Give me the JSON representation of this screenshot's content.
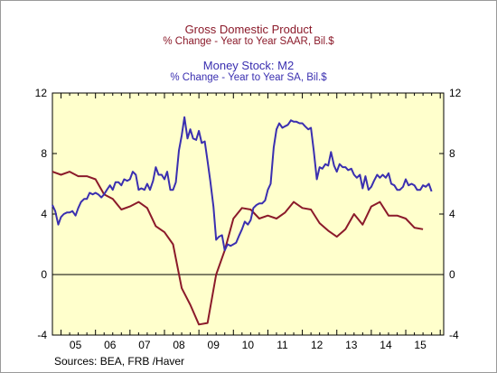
{
  "titles": {
    "gdp_title": "Gross Domestic Product",
    "gdp_subtitle": "% Change - Year to Year    SAAR, Bil.$",
    "m2_title": "Money Stock: M2",
    "m2_subtitle": "% Change - Year to Year    SA, Bil.$"
  },
  "source": "Sources:  BEA, FRB /Haver",
  "colors": {
    "gdp": "#8b1a2a",
    "m2": "#3a2fb0",
    "plot_bg": "#ffffcc",
    "axis": "#000000"
  },
  "chart_data": {
    "type": "line",
    "title": "Gross Domestic Product / Money Stock: M2",
    "xlabel": "",
    "ylabel": "",
    "ylim": [
      -4,
      12
    ],
    "xlim": [
      2004.75,
      2016.1
    ],
    "yticks": [
      -4,
      0,
      4,
      8,
      12
    ],
    "xtick_labels": [
      "05",
      "06",
      "07",
      "08",
      "09",
      "10",
      "11",
      "12",
      "13",
      "14",
      "15"
    ],
    "xtick_positions": [
      2005.0,
      2006.0,
      2007.0,
      2008.0,
      2009.0,
      2010.0,
      2011.0,
      2012.0,
      2013.0,
      2014.0,
      2015.0
    ],
    "grid": false,
    "zero_line": true,
    "series": [
      {
        "name": "Gross Domestic Product",
        "x": [
          2004.75,
          2005.0,
          2005.25,
          2005.5,
          2005.75,
          2006.0,
          2006.25,
          2006.5,
          2006.75,
          2007.0,
          2007.25,
          2007.5,
          2007.75,
          2008.0,
          2008.25,
          2008.5,
          2008.75,
          2009.0,
          2009.25,
          2009.5,
          2009.75,
          2010.0,
          2010.25,
          2010.5,
          2010.75,
          2011.0,
          2011.25,
          2011.5,
          2011.75,
          2012.0,
          2012.25,
          2012.5,
          2012.75,
          2013.0,
          2013.25,
          2013.5,
          2013.75,
          2014.0,
          2014.25,
          2014.5,
          2014.75,
          2015.0,
          2015.25,
          2015.5
        ],
        "values": [
          6.8,
          6.6,
          6.8,
          6.5,
          6.5,
          6.3,
          5.3,
          5.0,
          4.3,
          4.5,
          4.8,
          4.4,
          3.2,
          2.8,
          2.0,
          -0.9,
          -2.0,
          -3.3,
          -3.2,
          0.0,
          1.6,
          3.7,
          4.4,
          4.3,
          3.7,
          3.9,
          3.7,
          4.1,
          4.8,
          4.4,
          4.3,
          3.4,
          2.9,
          2.5,
          3.0,
          4.0,
          3.3,
          4.5,
          4.8,
          3.9,
          3.9,
          3.7,
          3.1,
          3.0
        ]
      },
      {
        "name": "Money Stock: M2",
        "x": [
          2004.75,
          2004.83,
          2004.92,
          2005.0,
          2005.08,
          2005.17,
          2005.25,
          2005.33,
          2005.42,
          2005.5,
          2005.58,
          2005.67,
          2005.75,
          2005.83,
          2005.92,
          2006.0,
          2006.08,
          2006.17,
          2006.25,
          2006.33,
          2006.42,
          2006.5,
          2006.58,
          2006.67,
          2006.75,
          2006.83,
          2006.92,
          2007.0,
          2007.08,
          2007.17,
          2007.25,
          2007.33,
          2007.42,
          2007.5,
          2007.58,
          2007.67,
          2007.75,
          2007.83,
          2007.92,
          2008.0,
          2008.08,
          2008.17,
          2008.25,
          2008.33,
          2008.42,
          2008.5,
          2008.58,
          2008.67,
          2008.75,
          2008.83,
          2008.92,
          2009.0,
          2009.08,
          2009.17,
          2009.25,
          2009.33,
          2009.42,
          2009.5,
          2009.58,
          2009.67,
          2009.75,
          2009.83,
          2009.92,
          2010.0,
          2010.08,
          2010.17,
          2010.25,
          2010.33,
          2010.42,
          2010.5,
          2010.58,
          2010.67,
          2010.75,
          2010.83,
          2010.92,
          2011.0,
          2011.08,
          2011.17,
          2011.25,
          2011.33,
          2011.42,
          2011.5,
          2011.58,
          2011.67,
          2011.75,
          2011.83,
          2011.92,
          2012.0,
          2012.08,
          2012.17,
          2012.25,
          2012.33,
          2012.42,
          2012.5,
          2012.58,
          2012.67,
          2012.75,
          2012.83,
          2012.92,
          2013.0,
          2013.08,
          2013.17,
          2013.25,
          2013.33,
          2013.42,
          2013.5,
          2013.58,
          2013.67,
          2013.75,
          2013.83,
          2013.92,
          2014.0,
          2014.08,
          2014.17,
          2014.25,
          2014.33,
          2014.42,
          2014.5,
          2014.58,
          2014.67,
          2014.75,
          2014.83,
          2014.92,
          2015.0,
          2015.08,
          2015.17,
          2015.25,
          2015.33,
          2015.42,
          2015.5,
          2015.58,
          2015.67,
          2015.75
        ],
        "values": [
          4.6,
          4.2,
          3.3,
          3.8,
          4.0,
          4.1,
          4.1,
          4.2,
          3.9,
          4.4,
          4.8,
          5.0,
          5.0,
          5.4,
          5.3,
          5.4,
          5.3,
          5.1,
          5.3,
          5.6,
          5.9,
          5.6,
          6.1,
          6.1,
          5.9,
          6.3,
          6.2,
          6.3,
          6.8,
          6.6,
          5.6,
          5.7,
          5.6,
          6.0,
          5.6,
          6.2,
          7.1,
          6.6,
          6.6,
          6.3,
          6.8,
          5.6,
          5.6,
          6.1,
          8.2,
          9.2,
          10.4,
          9.0,
          9.6,
          9.0,
          8.9,
          9.5,
          8.7,
          8.8,
          7.5,
          6.2,
          4.5,
          2.3,
          2.5,
          2.6,
          1.6,
          2.0,
          1.9,
          2.0,
          2.1,
          2.6,
          3.0,
          3.5,
          3.3,
          3.6,
          4.4,
          4.6,
          4.7,
          4.7,
          4.9,
          5.6,
          6.0,
          8.4,
          9.6,
          10.0,
          9.7,
          9.8,
          9.9,
          10.2,
          10.1,
          10.1,
          10.0,
          10.0,
          9.8,
          9.6,
          9.7,
          8.2,
          6.3,
          7.1,
          7.0,
          7.3,
          7.2,
          8.1,
          7.2,
          6.8,
          7.3,
          7.1,
          7.1,
          6.9,
          7.0,
          6.6,
          6.4,
          6.6,
          5.7,
          6.5,
          5.6,
          5.8,
          6.2,
          6.6,
          6.4,
          6.6,
          6.4,
          6.7,
          6.0,
          5.9,
          5.6,
          5.6,
          5.8,
          6.3,
          5.9,
          6.0,
          5.9,
          5.6,
          5.6,
          5.9,
          5.8,
          6.0,
          5.5
        ]
      }
    ]
  }
}
